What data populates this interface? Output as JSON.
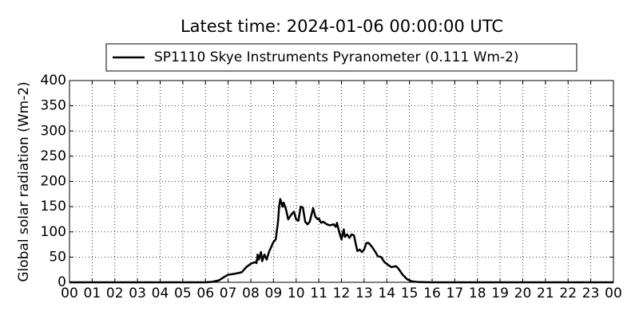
{
  "chart_data": {
    "type": "line",
    "title": "Latest time: 2024-01-06 00:00:00 UTC",
    "y_label": "Global solar radiation (Wm-2)",
    "x": [
      0,
      6.0,
      6.3,
      6.6,
      6.8,
      7.0,
      7.3,
      7.6,
      7.8,
      8.0,
      8.2,
      8.25,
      8.3,
      8.35,
      8.45,
      8.5,
      8.6,
      8.7,
      8.8,
      9.0,
      9.1,
      9.2,
      9.25,
      9.3,
      9.4,
      9.45,
      9.55,
      9.65,
      9.8,
      9.9,
      10.0,
      10.1,
      10.2,
      10.3,
      10.4,
      10.5,
      10.6,
      10.75,
      10.85,
      10.95,
      11.0,
      11.1,
      11.2,
      11.35,
      11.5,
      11.65,
      11.75,
      11.8,
      11.9,
      12.0,
      12.05,
      12.1,
      12.15,
      12.25,
      12.35,
      12.45,
      12.55,
      12.7,
      12.8,
      12.9,
      13.0,
      13.1,
      13.2,
      13.35,
      13.5,
      13.6,
      13.75,
      13.9,
      14.05,
      14.2,
      14.4,
      14.5,
      14.7,
      14.9,
      15.1,
      15.4,
      16,
      24
    ],
    "series": [
      {
        "name": "SP1110 Skye Instruments Pyranometer (0.111 Wm-2)",
        "color": "#000000",
        "values": [
          0,
          0,
          1,
          4,
          10,
          15,
          17,
          20,
          30,
          37,
          40,
          38,
          55,
          45,
          60,
          42,
          55,
          45,
          60,
          80,
          85,
          120,
          150,
          165,
          150,
          158,
          145,
          125,
          135,
          140,
          125,
          122,
          150,
          148,
          120,
          115,
          120,
          147,
          130,
          125,
          127,
          118,
          120,
          115,
          113,
          115,
          110,
          118,
          100,
          85,
          95,
          105,
          90,
          95,
          88,
          95,
          93,
          62,
          65,
          60,
          65,
          78,
          78,
          70,
          60,
          52,
          50,
          40,
          35,
          30,
          32,
          28,
          15,
          6,
          2,
          0.5,
          0,
          0
        ]
      }
    ],
    "xlim": [
      0,
      24
    ],
    "xticks": [
      {
        "value": 0,
        "label": "00"
      },
      {
        "value": 1,
        "label": "01"
      },
      {
        "value": 2,
        "label": "02"
      },
      {
        "value": 3,
        "label": "03"
      },
      {
        "value": 4,
        "label": "04"
      },
      {
        "value": 5,
        "label": "05"
      },
      {
        "value": 6,
        "label": "06"
      },
      {
        "value": 7,
        "label": "07"
      },
      {
        "value": 8,
        "label": "08"
      },
      {
        "value": 9,
        "label": "09"
      },
      10,
      11,
      12,
      13,
      14,
      15,
      16,
      17,
      18,
      19,
      20,
      21,
      22,
      23,
      {
        "value": 24,
        "label": "00"
      }
    ],
    "ylim": [
      0,
      400
    ],
    "yticks": [
      0,
      50,
      100,
      150,
      200,
      250,
      300,
      350,
      400
    ],
    "grid": true
  }
}
